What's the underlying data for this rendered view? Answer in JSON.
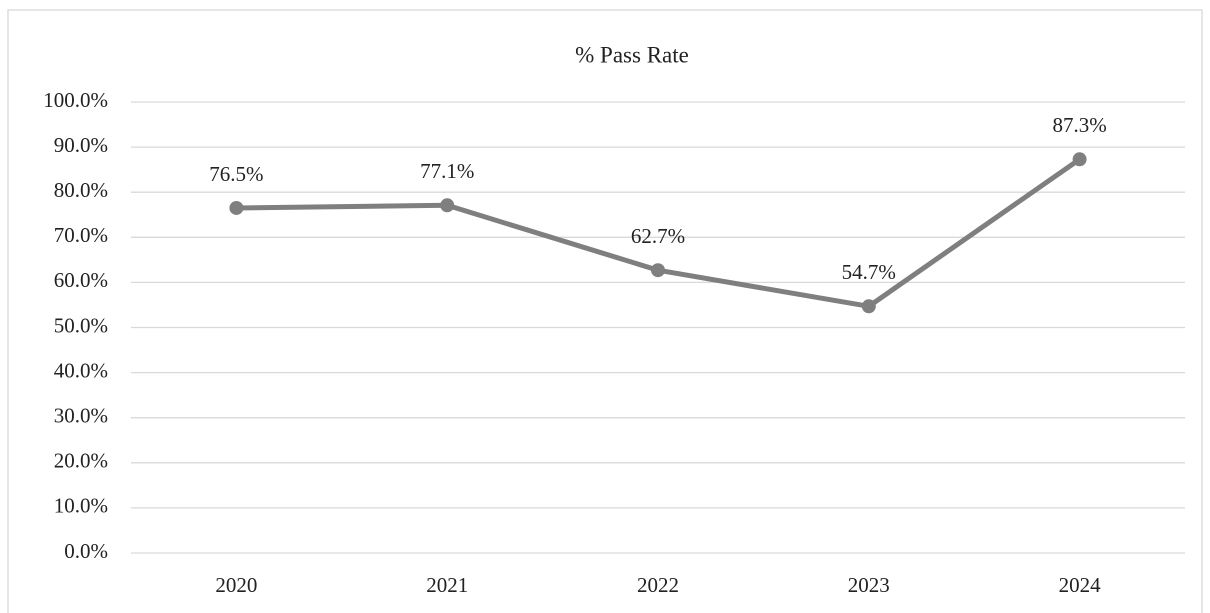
{
  "chart_data": {
    "type": "line",
    "title": "% Pass Rate",
    "categories": [
      "2020",
      "2021",
      "2022",
      "2023",
      "2024"
    ],
    "series": [
      {
        "name": "% Pass Rate",
        "color": "#7f7f7f",
        "values": [
          76.5,
          77.1,
          62.7,
          54.7,
          87.3
        ],
        "value_labels": [
          "76.5%",
          "77.1%",
          "62.7%",
          "54.7%",
          "87.3%"
        ]
      }
    ],
    "ylim": [
      0,
      100
    ],
    "yticks": [
      {
        "value": 0,
        "label": "0.0%"
      },
      {
        "value": 10,
        "label": "10.0%"
      },
      {
        "value": 20,
        "label": "20.0%"
      },
      {
        "value": 30,
        "label": "30.0%"
      },
      {
        "value": 40,
        "label": "40.0%"
      },
      {
        "value": 50,
        "label": "50.0%"
      },
      {
        "value": 60,
        "label": "60.0%"
      },
      {
        "value": 70,
        "label": "70.0%"
      },
      {
        "value": 80,
        "label": "80.0%"
      },
      {
        "value": 90,
        "label": "90.0%"
      },
      {
        "value": 100,
        "label": "100.0%"
      }
    ],
    "grid": true
  }
}
